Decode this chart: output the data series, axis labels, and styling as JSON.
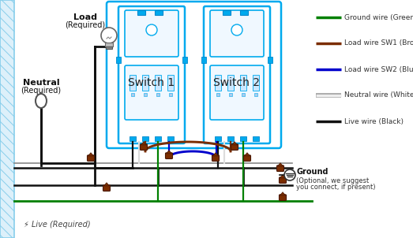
{
  "bg_color": "#ffffff",
  "wire_colors": {
    "green": "#008000",
    "brown": "#7B2D00",
    "blue": "#0000CC",
    "white": "#dddddd",
    "black": "#111111",
    "gray": "#888888"
  },
  "legend": [
    {
      "color": "#008000",
      "label": "Ground wire (Green)"
    },
    {
      "color": "#7B2D00",
      "label": "Load wire SW1 (Brown)"
    },
    {
      "color": "#0000CC",
      "label": "Load wire SW2 (Blue)"
    },
    {
      "color": "#dddddd",
      "label": "Neutral wire (White)"
    },
    {
      "color": "#111111",
      "label": "Live wire (Black)"
    }
  ],
  "labels": {
    "load": "Load\n(Required)",
    "neutral": "Neutral\n(Required)",
    "live": "Live (Required)",
    "switch1": "Switch 1",
    "switch2": "Switch 2",
    "ground_label": "Ground",
    "ground_sub": "(Optional, we suggest\nyou connect, if present)"
  },
  "fig_width": 5.23,
  "fig_height": 3.02,
  "dpi": 100
}
